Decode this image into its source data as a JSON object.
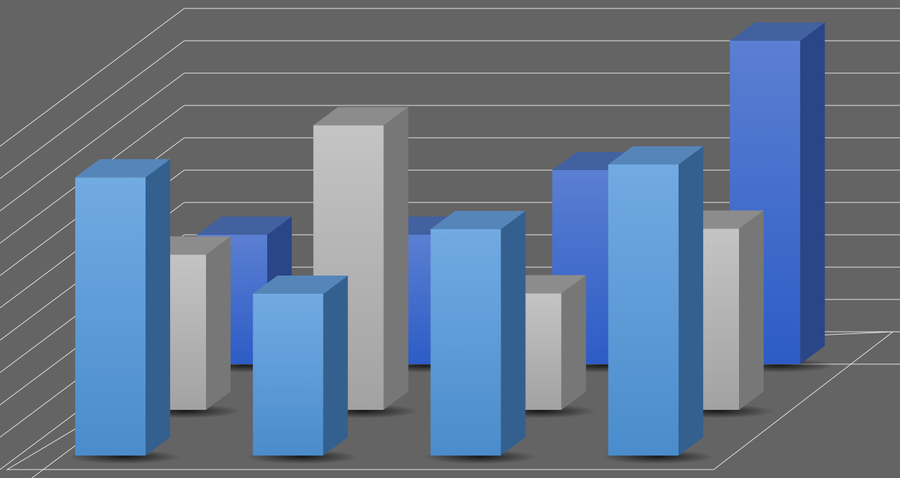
{
  "chart_data": {
    "type": "bar",
    "style": "3d-clustered-depth",
    "categories": [
      "",
      "",
      "",
      ""
    ],
    "series": [
      {
        "row": "back",
        "color": "#3a66c8",
        "values": [
          4.0,
          4.0,
          6.0,
          10.0
        ]
      },
      {
        "row": "middle",
        "color": "#b4b4b4",
        "values": [
          4.8,
          8.8,
          3.6,
          5.6
        ]
      },
      {
        "row": "front",
        "color": "#5a9bdc",
        "values": [
          8.6,
          5.0,
          7.0,
          9.0
        ]
      }
    ],
    "ylim": [
      0,
      11
    ],
    "grid": true,
    "legend": "none",
    "title": "",
    "xlabel": "",
    "ylabel": "",
    "background_color": "#646464",
    "gridline_color": "#e6e6e6"
  }
}
